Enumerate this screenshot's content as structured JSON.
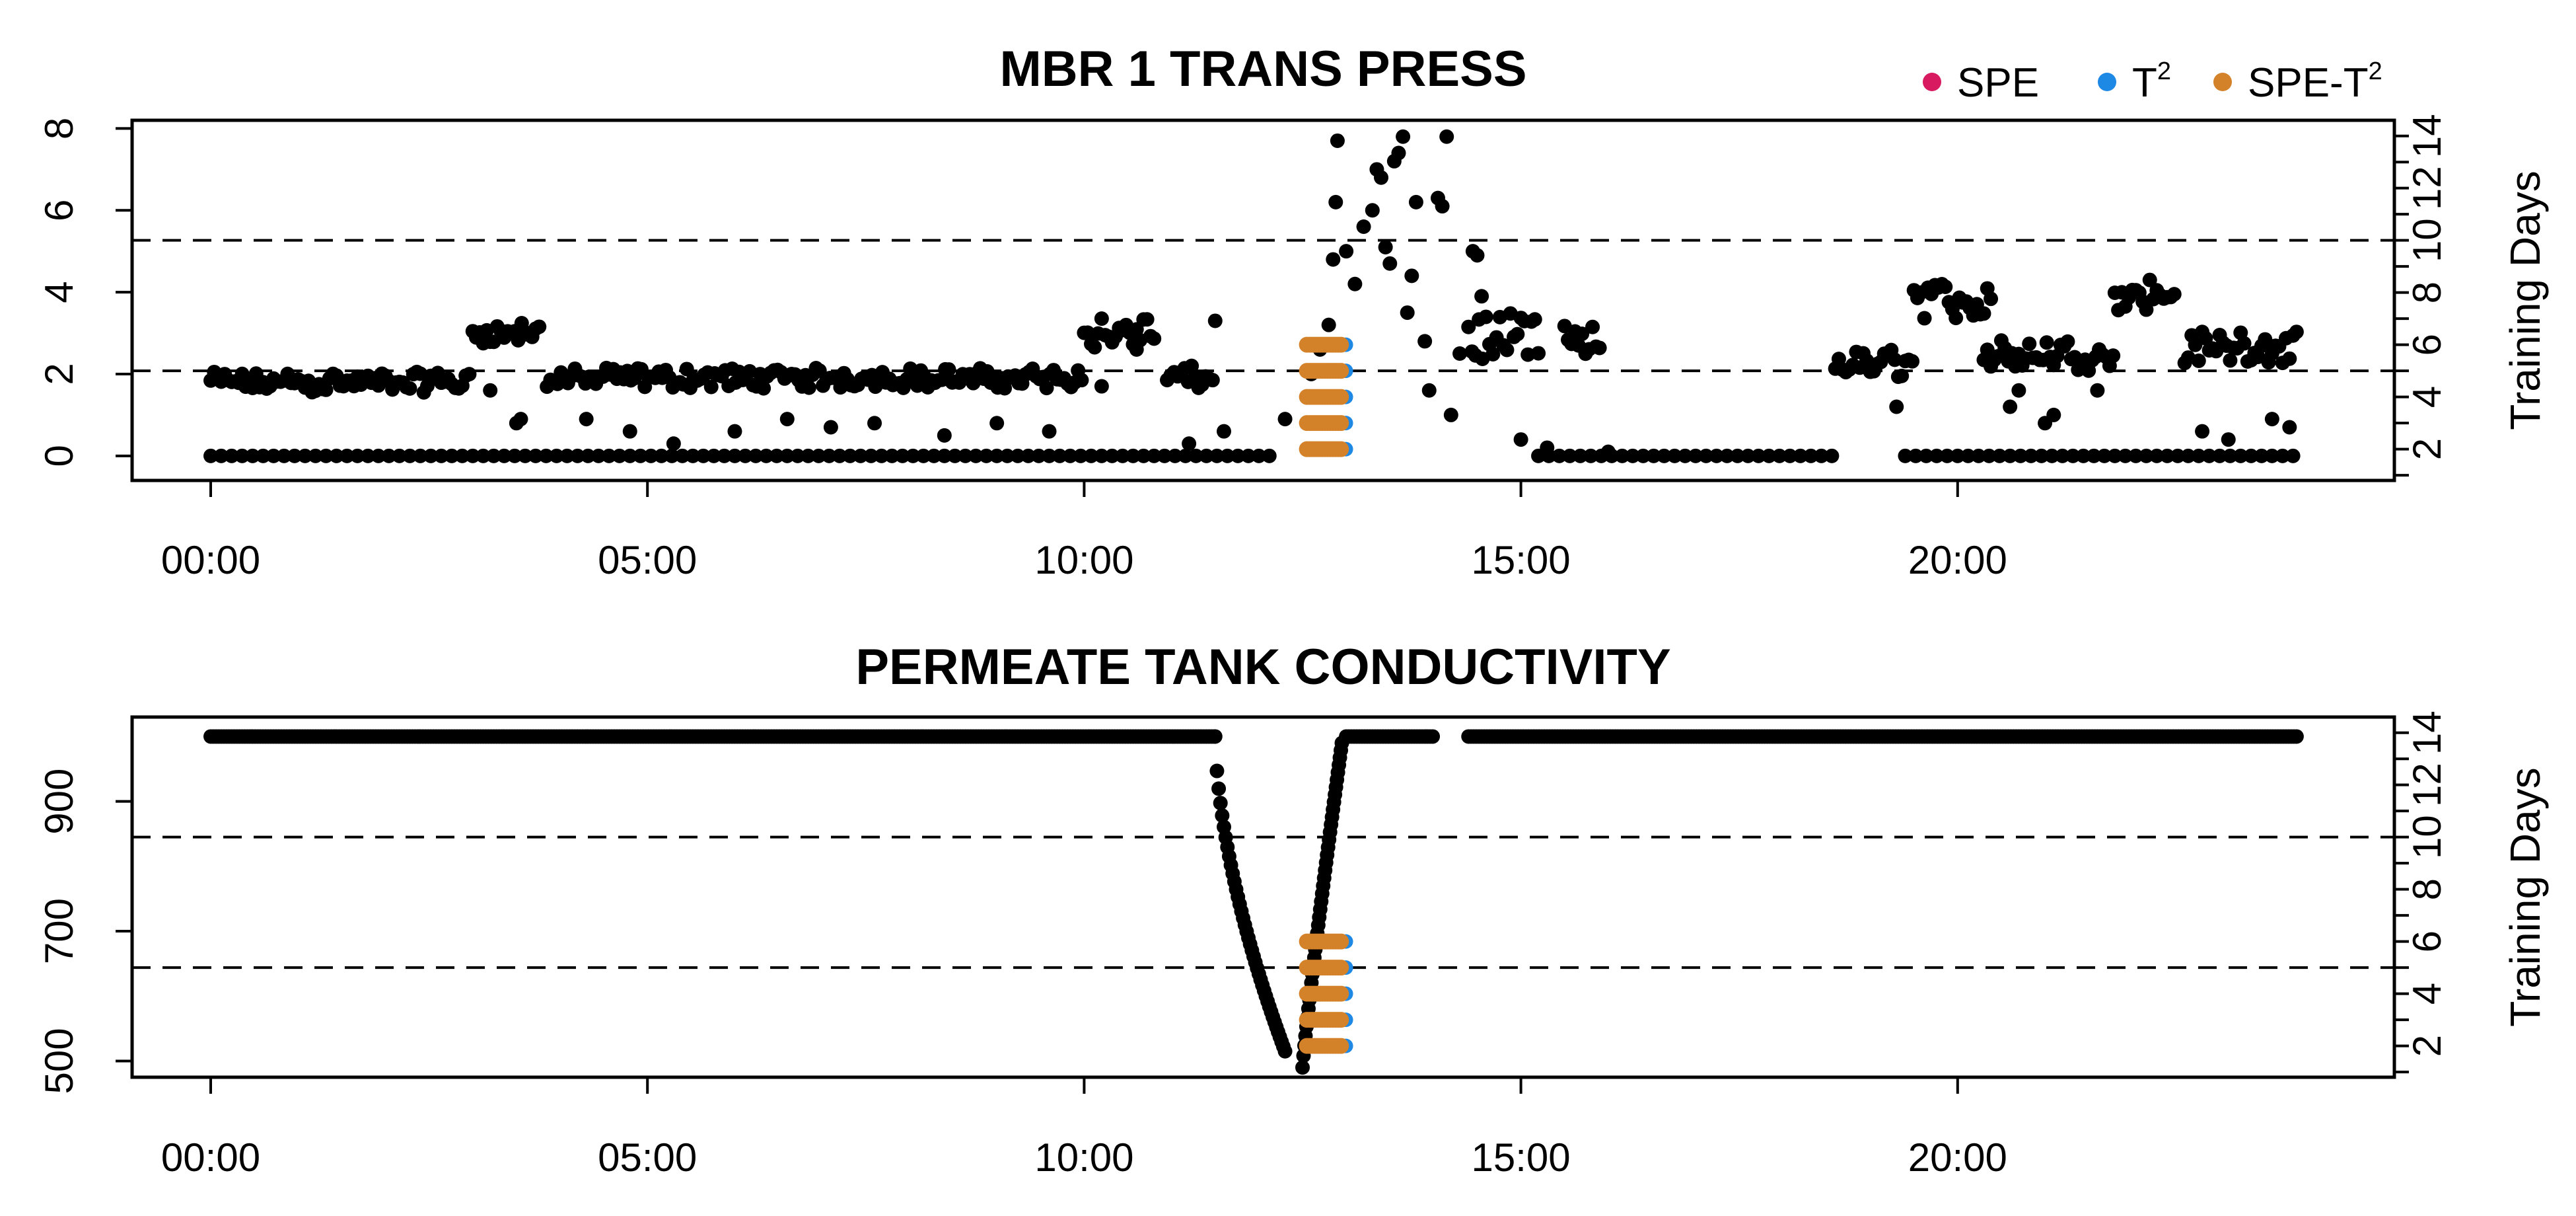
{
  "legend": [
    {
      "label": "SPE",
      "color": "#d81b60"
    },
    {
      "label": "T",
      "sup": "2",
      "color": "#1e88e5"
    },
    {
      "label": "SPE-T",
      "sup": "2",
      "color": "#d4822a"
    }
  ],
  "colors": {
    "points": "#000000",
    "spe": "#d81b60",
    "t2": "#1e88e5",
    "spe_t2": "#d4822a"
  },
  "chart_data": [
    {
      "type": "scatter",
      "title": "MBR 1 TRANS PRESS",
      "x_axis": {
        "ticks": [
          "00:00",
          "05:00",
          "10:00",
          "15:00",
          "20:00"
        ],
        "range_hours": [
          -0.9,
          25.0
        ]
      },
      "y_axis": {
        "ticks": [
          0,
          2,
          4,
          6,
          8
        ],
        "range": [
          -0.6,
          8.2
        ]
      },
      "right_axis": {
        "label": "Training Days",
        "ticks": [
          2,
          4,
          6,
          8,
          10,
          12,
          14
        ],
        "range": [
          0.8,
          14.6
        ]
      },
      "threshold_lines_days": [
        5,
        10
      ],
      "grid": false,
      "segments": [
        {
          "start": 0.0,
          "end": 3.0,
          "levels": [
            1.7,
            1.9
          ],
          "noise": 0.15
        },
        {
          "start": 3.0,
          "end": 3.8,
          "levels": [
            2.9,
            3.1
          ],
          "noise": 0.15
        },
        {
          "start": 3.85,
          "end": 10.0,
          "levels": [
            1.8,
            2.0
          ],
          "noise": 0.15
        },
        {
          "start": 10.0,
          "end": 10.8,
          "levels": [
            2.8,
            3.2
          ],
          "noise": 0.2
        },
        {
          "start": 10.95,
          "end": 11.5,
          "levels": [
            1.8,
            2.0
          ],
          "noise": 0.2
        },
        {
          "start": 14.4,
          "end": 15.2,
          "levels": [
            2.6,
            3.2
          ],
          "noise": 0.3
        },
        {
          "start": 15.5,
          "end": 15.9,
          "levels": [
            2.5,
            2.9
          ],
          "noise": 0.3
        },
        {
          "start": 18.6,
          "end": 19.5,
          "levels": [
            2.1,
            2.4
          ],
          "noise": 0.2
        },
        {
          "start": 19.5,
          "end": 20.4,
          "levels": [
            3.6,
            4.0
          ],
          "noise": 0.25
        },
        {
          "start": 20.3,
          "end": 21.8,
          "levels": [
            2.3,
            2.6
          ],
          "noise": 0.25
        },
        {
          "start": 21.8,
          "end": 22.5,
          "levels": [
            3.8,
            4.1
          ],
          "noise": 0.25
        },
        {
          "start": 22.6,
          "end": 23.9,
          "levels": [
            2.5,
            2.8
          ],
          "noise": 0.25
        }
      ],
      "zero_ranges": [
        [
          0.0,
          12.2
        ],
        [
          15.2,
          18.6
        ],
        [
          19.4,
          23.9
        ]
      ],
      "scattered_points": [
        [
          12.6,
          2.0
        ],
        [
          12.7,
          2.6
        ],
        [
          12.8,
          3.2
        ],
        [
          12.85,
          4.8
        ],
        [
          12.88,
          6.2
        ],
        [
          12.9,
          7.7
        ],
        [
          13.0,
          5.0
        ],
        [
          13.1,
          4.2
        ],
        [
          13.2,
          5.6
        ],
        [
          13.3,
          6.0
        ],
        [
          13.35,
          7.0
        ],
        [
          13.4,
          6.8
        ],
        [
          13.45,
          5.1
        ],
        [
          13.5,
          4.7
        ],
        [
          13.55,
          7.2
        ],
        [
          13.6,
          7.4
        ],
        [
          13.65,
          7.8
        ],
        [
          13.7,
          3.5
        ],
        [
          13.75,
          4.4
        ],
        [
          13.8,
          6.2
        ],
        [
          13.9,
          2.8
        ],
        [
          13.95,
          1.6
        ],
        [
          14.05,
          6.3
        ],
        [
          14.1,
          6.1
        ],
        [
          14.15,
          7.8
        ],
        [
          14.2,
          1.0
        ],
        [
          14.3,
          2.5
        ],
        [
          14.45,
          5.0
        ],
        [
          14.5,
          4.9
        ],
        [
          14.55,
          3.9
        ],
        [
          3.5,
          0.8
        ],
        [
          3.55,
          0.9
        ],
        [
          3.2,
          1.6
        ],
        [
          4.3,
          0.9
        ],
        [
          4.8,
          0.6
        ],
        [
          5.3,
          0.3
        ],
        [
          6.0,
          0.6
        ],
        [
          6.6,
          0.9
        ],
        [
          7.1,
          0.7
        ],
        [
          7.6,
          0.8
        ],
        [
          8.4,
          0.5
        ],
        [
          9.0,
          0.8
        ],
        [
          9.6,
          0.6
        ],
        [
          10.2,
          1.7
        ],
        [
          10.6,
          2.6
        ],
        [
          11.2,
          0.3
        ],
        [
          11.5,
          3.3
        ],
        [
          11.6,
          0.6
        ],
        [
          12.3,
          0.9
        ],
        [
          15.0,
          0.4
        ],
        [
          15.3,
          0.2
        ],
        [
          16.0,
          0.1
        ],
        [
          19.3,
          1.2
        ],
        [
          20.6,
          1.2
        ],
        [
          20.7,
          1.6
        ],
        [
          21.0,
          0.8
        ],
        [
          21.1,
          1.0
        ],
        [
          21.6,
          1.6
        ],
        [
          22.8,
          0.6
        ],
        [
          23.1,
          0.4
        ],
        [
          23.6,
          0.9
        ],
        [
          23.8,
          0.7
        ]
      ],
      "highlight_x": [
        12.55,
        12.95
      ],
      "highlight_days": [
        2,
        3,
        4,
        5,
        6
      ]
    },
    {
      "type": "scatter",
      "title": "PERMEATE TANK CONDUCTIVITY",
      "x_axis": {
        "ticks": [
          "00:00",
          "05:00",
          "10:00",
          "15:00",
          "20:00"
        ],
        "range_hours": [
          -0.9,
          25.0
        ]
      },
      "y_axis": {
        "ticks": [
          500,
          700,
          900
        ],
        "range": [
          475,
          1030
        ]
      },
      "right_axis": {
        "label": "Training Days",
        "ticks": [
          2,
          4,
          6,
          8,
          10,
          12,
          14
        ],
        "range": [
          0.8,
          14.6
        ]
      },
      "threshold_lines_days": [
        5,
        10
      ],
      "grid": false,
      "baseline": 1000,
      "baseline_ranges": [
        [
          0.0,
          11.5
        ],
        [
          13.0,
          14.0
        ],
        [
          14.4,
          23.9
        ]
      ],
      "dip_down": {
        "start": 11.5,
        "end": 12.3,
        "from": 1000,
        "to": 515
      },
      "dip_up": {
        "start": 12.5,
        "end": 12.95,
        "from": 490,
        "to": 990
      },
      "highlight_x": [
        12.55,
        12.95
      ],
      "highlight_days": [
        2,
        3,
        4,
        5,
        6
      ]
    }
  ]
}
